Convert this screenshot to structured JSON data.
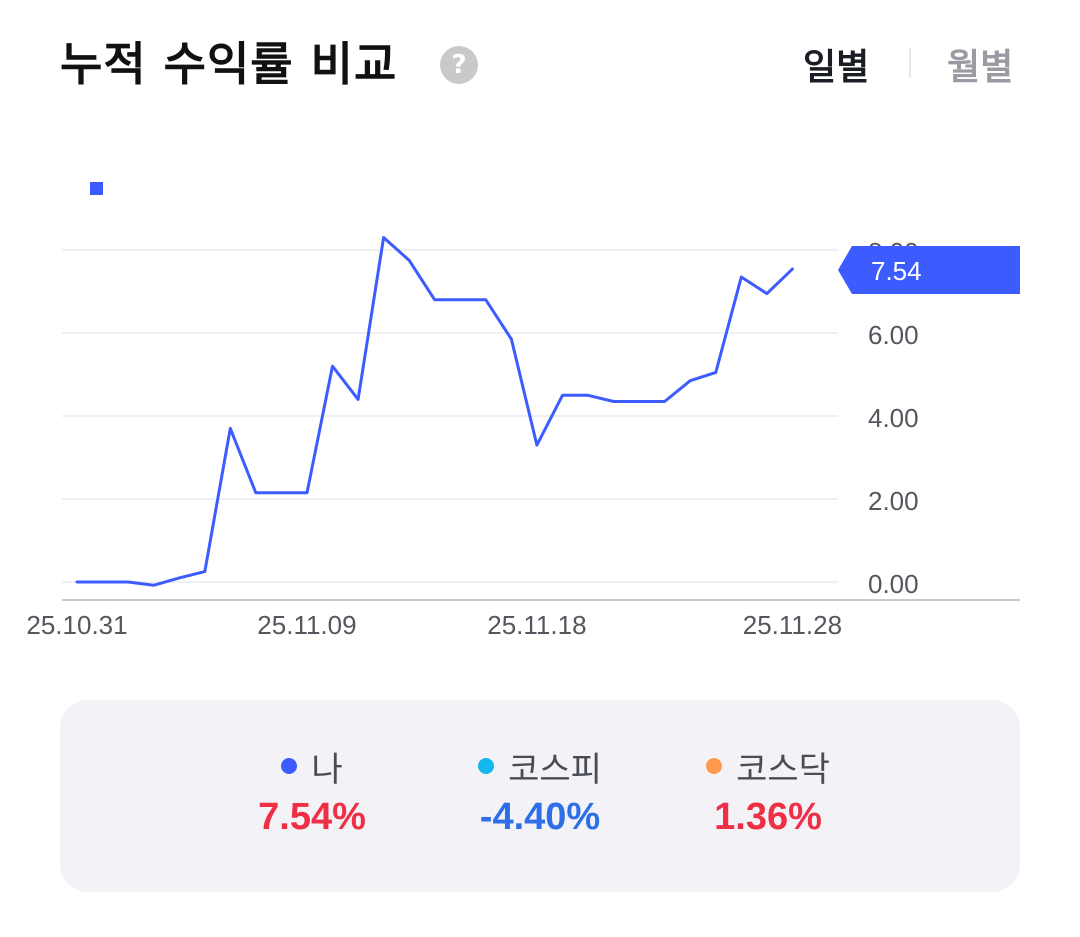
{
  "header": {
    "title": "누적 수익률 비교",
    "help_icon": "question-mark-icon",
    "help_glyph": "?",
    "toggle_daily": "일별",
    "toggle_monthly": "월별",
    "active_toggle": "일별"
  },
  "chart_data": {
    "type": "line",
    "title": "",
    "xlabel": "",
    "ylabel": "",
    "y_ticks": [
      "0.00",
      "2.00",
      "4.00",
      "6.00",
      "8.00"
    ],
    "y_ticks_values": [
      0,
      2,
      4,
      6,
      8
    ],
    "ylim": [
      -0.35,
      8.45
    ],
    "x_tick_labels": [
      "25.10.31",
      "25.11.09",
      "25.11.18",
      "25.11.28"
    ],
    "x_tick_indices": [
      0,
      9,
      18,
      28
    ],
    "grid": true,
    "y_axis_side": "right",
    "current_value_label": "7.54",
    "legend_marker_color": "#3d5cff",
    "series": [
      {
        "color": "#3d5cff",
        "values": [
          0.0,
          0.0,
          0.0,
          -0.08,
          0.1,
          0.25,
          3.7,
          2.15,
          2.15,
          2.15,
          5.2,
          4.4,
          8.3,
          7.75,
          6.8,
          6.8,
          6.8,
          5.85,
          3.3,
          4.5,
          4.5,
          4.35,
          4.35,
          4.35,
          4.85,
          5.05,
          7.35,
          6.95,
          7.54
        ]
      }
    ]
  },
  "summary": {
    "items": [
      {
        "label": "나",
        "value": "7.54%",
        "dot_color": "#3d5cff",
        "value_color": "#ee2f46"
      },
      {
        "label": "코스피",
        "value": "-4.40%",
        "dot_color": "#13b7f0",
        "value_color": "#2f6ee9"
      },
      {
        "label": "코스닥",
        "value": "1.36%",
        "dot_color": "#ff9a4d",
        "value_color": "#ee2f46"
      }
    ]
  }
}
